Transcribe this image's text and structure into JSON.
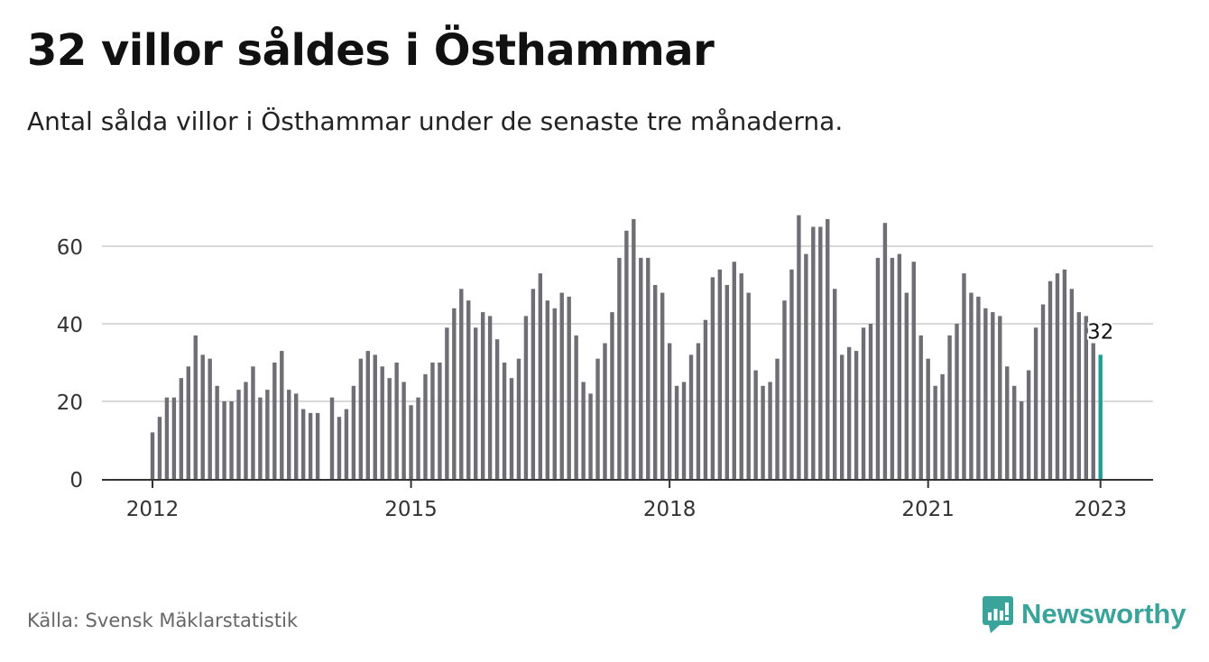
{
  "header": {
    "title": "32 villor såldes i Östhammar",
    "subtitle": "Antal sålda villor i Östhammar under de senaste tre månaderna."
  },
  "footer": {
    "source": "Källa: Svensk Mäklarstatistik",
    "brand": "Newsworthy"
  },
  "colors": {
    "bar": "#6e6e74",
    "highlight": "#1f9e96",
    "grid": "#d9d9d9",
    "axis": "#333333",
    "brand": "#3aa39a"
  },
  "chart_data": {
    "type": "bar",
    "start": "2012-01",
    "ylim": [
      0,
      70
    ],
    "yticks": [
      0,
      20,
      40,
      60
    ],
    "xticks": [
      "2012",
      "2015",
      "2018",
      "2021",
      "2023"
    ],
    "grid": true,
    "highlight_label": "32",
    "values": [
      12,
      16,
      21,
      21,
      26,
      29,
      37,
      32,
      31,
      24,
      20,
      20,
      23,
      25,
      29,
      21,
      23,
      30,
      33,
      23,
      22,
      18,
      17,
      17,
      null,
      21,
      16,
      18,
      24,
      31,
      33,
      32,
      29,
      26,
      30,
      25,
      19,
      21,
      27,
      30,
      30,
      39,
      44,
      49,
      46,
      39,
      43,
      42,
      36,
      30,
      26,
      31,
      42,
      49,
      53,
      46,
      44,
      48,
      47,
      37,
      25,
      22,
      31,
      35,
      43,
      57,
      64,
      67,
      57,
      57,
      50,
      48,
      35,
      24,
      25,
      32,
      35,
      41,
      52,
      54,
      50,
      56,
      53,
      48,
      28,
      24,
      25,
      31,
      46,
      54,
      68,
      58,
      65,
      65,
      67,
      49,
      32,
      34,
      33,
      39,
      40,
      57,
      66,
      57,
      58,
      48,
      56,
      37,
      31,
      24,
      27,
      37,
      40,
      53,
      48,
      47,
      44,
      43,
      42,
      29,
      24,
      20,
      28,
      39,
      45,
      51,
      53,
      54,
      49,
      43,
      42,
      35,
      32
    ]
  }
}
